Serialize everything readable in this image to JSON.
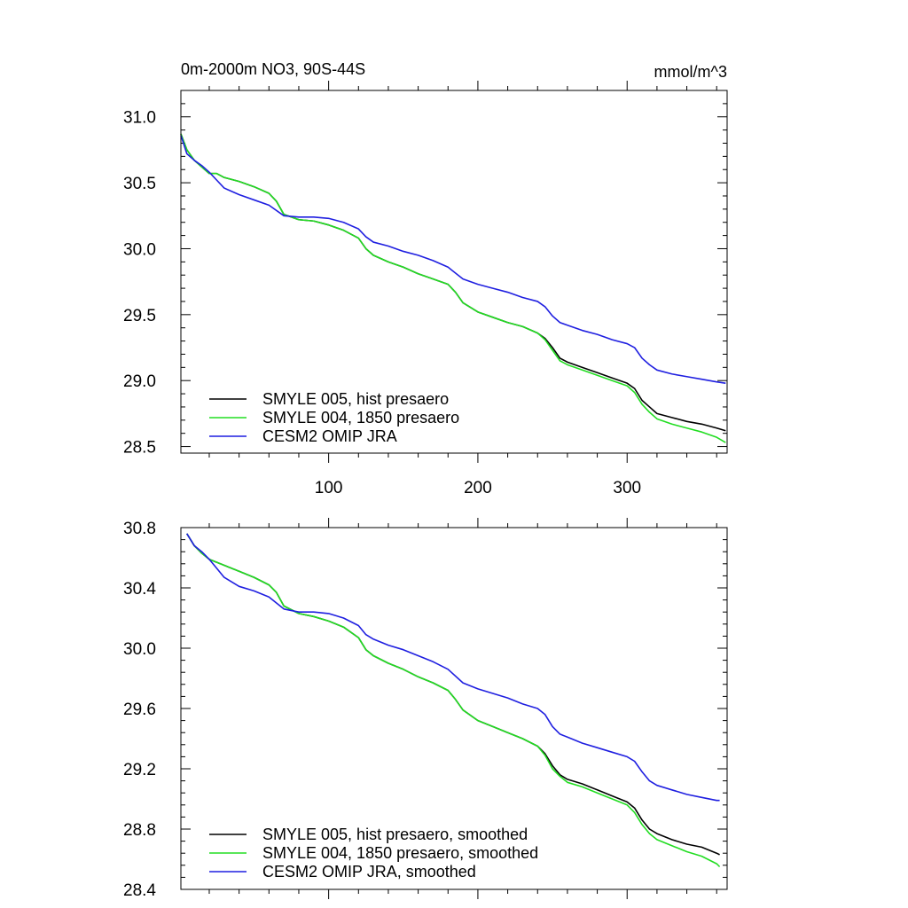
{
  "chart_data": [
    {
      "type": "line",
      "title_left": "0m-2000m NO3, 90S-44S",
      "title_right": "mmol/m^3",
      "xlabel": "",
      "ylabel": "",
      "xlim": [
        1,
        367
      ],
      "ylim": [
        28.45,
        31.2
      ],
      "xticks": [
        100,
        200,
        300
      ],
      "xtick_labels": [
        "100",
        "200",
        "300"
      ],
      "yticks": [
        28.5,
        29.0,
        29.5,
        30.0,
        30.5,
        31.0
      ],
      "ytick_labels": [
        "28.5",
        "29.0",
        "29.5",
        "30.0",
        "30.5",
        "31.0"
      ],
      "legend": "bottom-left",
      "series": [
        {
          "name": "SMYLE 005, hist presaero",
          "color": "#000000",
          "x": [
            1,
            5,
            10,
            15,
            20,
            25,
            30,
            40,
            50,
            60,
            65,
            70,
            80,
            90,
            100,
            110,
            120,
            125,
            130,
            140,
            150,
            160,
            170,
            180,
            185,
            190,
            200,
            210,
            220,
            230,
            240,
            245,
            250,
            255,
            260,
            270,
            280,
            290,
            300,
            305,
            310,
            315,
            320,
            330,
            340,
            350,
            360,
            366
          ],
          "y": [
            30.87,
            30.75,
            30.67,
            30.62,
            30.57,
            30.57,
            30.54,
            30.51,
            30.47,
            30.42,
            30.36,
            30.26,
            30.22,
            30.21,
            30.18,
            30.14,
            30.08,
            30.0,
            29.95,
            29.9,
            29.86,
            29.81,
            29.77,
            29.73,
            29.67,
            29.59,
            29.52,
            29.48,
            29.44,
            29.41,
            29.36,
            29.32,
            29.25,
            29.17,
            29.14,
            29.1,
            29.06,
            29.02,
            28.98,
            28.94,
            28.85,
            28.8,
            28.75,
            28.72,
            28.69,
            28.67,
            28.64,
            28.62
          ]
        },
        {
          "name": "SMYLE 004, 1850 presaero",
          "color": "#22dd22",
          "x": [
            1,
            5,
            10,
            15,
            20,
            25,
            30,
            40,
            50,
            60,
            65,
            70,
            80,
            90,
            100,
            110,
            120,
            125,
            130,
            140,
            150,
            160,
            170,
            180,
            185,
            190,
            200,
            210,
            220,
            230,
            240,
            245,
            250,
            255,
            260,
            270,
            280,
            290,
            300,
            305,
            310,
            315,
            320,
            330,
            340,
            350,
            360,
            366
          ],
          "y": [
            30.87,
            30.75,
            30.67,
            30.62,
            30.57,
            30.57,
            30.54,
            30.51,
            30.47,
            30.42,
            30.36,
            30.26,
            30.22,
            30.21,
            30.18,
            30.14,
            30.08,
            30.0,
            29.95,
            29.9,
            29.86,
            29.81,
            29.77,
            29.73,
            29.67,
            29.59,
            29.52,
            29.48,
            29.44,
            29.41,
            29.36,
            29.31,
            29.23,
            29.15,
            29.12,
            29.08,
            29.04,
            29.0,
            28.96,
            28.91,
            28.82,
            28.76,
            28.71,
            28.67,
            28.64,
            28.61,
            28.57,
            28.53
          ]
        },
        {
          "name": "CESM2 OMIP JRA",
          "color": "#1f1fe0",
          "x": [
            1,
            5,
            10,
            15,
            20,
            25,
            30,
            40,
            50,
            60,
            70,
            80,
            90,
            100,
            110,
            120,
            125,
            130,
            140,
            150,
            160,
            170,
            180,
            190,
            200,
            210,
            220,
            230,
            240,
            245,
            250,
            255,
            260,
            270,
            280,
            290,
            300,
            305,
            310,
            315,
            320,
            330,
            340,
            350,
            360,
            366
          ],
          "y": [
            30.86,
            30.72,
            30.67,
            30.63,
            30.58,
            30.52,
            30.46,
            30.41,
            30.37,
            30.33,
            30.25,
            30.24,
            30.24,
            30.23,
            30.2,
            30.15,
            30.09,
            30.05,
            30.02,
            29.98,
            29.95,
            29.91,
            29.86,
            29.77,
            29.73,
            29.7,
            29.67,
            29.63,
            29.6,
            29.56,
            29.49,
            29.44,
            29.42,
            29.38,
            29.35,
            29.31,
            29.28,
            29.25,
            29.17,
            29.12,
            29.08,
            29.05,
            29.03,
            29.01,
            28.99,
            28.98
          ]
        }
      ]
    },
    {
      "type": "line",
      "xlabel": "",
      "ylabel": "",
      "xlim": [
        1,
        367
      ],
      "ylim": [
        28.4,
        30.8
      ],
      "xticks": [
        100,
        200,
        300
      ],
      "yticks": [
        28.4,
        28.8,
        29.2,
        29.6,
        30.0,
        30.4,
        30.8
      ],
      "ytick_labels": [
        "28.4",
        "28.8",
        "29.2",
        "29.6",
        "30.0",
        "30.4",
        "30.8"
      ],
      "legend": "bottom-left",
      "series": [
        {
          "name": "SMYLE 005, hist presaero, smoothed",
          "color": "#000000",
          "x": [
            5,
            10,
            15,
            20,
            25,
            30,
            40,
            50,
            60,
            65,
            70,
            80,
            90,
            100,
            110,
            120,
            125,
            130,
            140,
            150,
            160,
            170,
            180,
            185,
            190,
            200,
            210,
            220,
            230,
            240,
            245,
            250,
            255,
            260,
            270,
            280,
            290,
            300,
            305,
            310,
            315,
            320,
            330,
            340,
            350,
            360,
            362
          ],
          "y": [
            30.76,
            30.68,
            30.63,
            30.59,
            30.57,
            30.55,
            30.51,
            30.47,
            30.42,
            30.37,
            30.28,
            30.23,
            30.21,
            30.18,
            30.14,
            30.07,
            29.99,
            29.95,
            29.9,
            29.86,
            29.81,
            29.77,
            29.72,
            29.66,
            29.59,
            29.52,
            29.48,
            29.44,
            29.4,
            29.35,
            29.3,
            29.22,
            29.16,
            29.13,
            29.1,
            29.06,
            29.02,
            28.98,
            28.94,
            28.86,
            28.8,
            28.77,
            28.73,
            28.7,
            28.68,
            28.64,
            28.63
          ]
        },
        {
          "name": "SMYLE 004, 1850 presaero, smoothed",
          "color": "#22dd22",
          "x": [
            5,
            10,
            15,
            20,
            25,
            30,
            40,
            50,
            60,
            65,
            70,
            80,
            90,
            100,
            110,
            120,
            125,
            130,
            140,
            150,
            160,
            170,
            180,
            185,
            190,
            200,
            210,
            220,
            230,
            240,
            245,
            250,
            255,
            260,
            270,
            280,
            290,
            300,
            305,
            310,
            315,
            320,
            330,
            340,
            350,
            360,
            362
          ],
          "y": [
            30.76,
            30.68,
            30.63,
            30.59,
            30.57,
            30.55,
            30.51,
            30.47,
            30.42,
            30.37,
            30.28,
            30.23,
            30.21,
            30.18,
            30.14,
            30.07,
            29.99,
            29.95,
            29.9,
            29.86,
            29.81,
            29.77,
            29.72,
            29.66,
            29.59,
            29.52,
            29.48,
            29.44,
            29.4,
            29.35,
            29.29,
            29.2,
            29.15,
            29.11,
            29.08,
            29.04,
            29.0,
            28.96,
            28.91,
            28.83,
            28.77,
            28.73,
            28.69,
            28.65,
            28.62,
            28.57,
            28.55
          ]
        },
        {
          "name": "CESM2 OMIP JRA, smoothed",
          "color": "#1f1fe0",
          "x": [
            5,
            10,
            15,
            20,
            25,
            30,
            40,
            50,
            60,
            70,
            80,
            90,
            100,
            110,
            120,
            125,
            130,
            140,
            150,
            160,
            170,
            180,
            190,
            200,
            210,
            220,
            230,
            240,
            245,
            250,
            255,
            260,
            270,
            280,
            290,
            300,
            305,
            310,
            315,
            320,
            330,
            340,
            350,
            360,
            362
          ],
          "y": [
            30.76,
            30.68,
            30.64,
            30.59,
            30.53,
            30.47,
            30.41,
            30.38,
            30.34,
            30.26,
            30.24,
            30.24,
            30.23,
            30.2,
            30.15,
            30.09,
            30.06,
            30.02,
            29.99,
            29.95,
            29.91,
            29.86,
            29.77,
            29.73,
            29.7,
            29.67,
            29.63,
            29.6,
            29.56,
            29.48,
            29.43,
            29.41,
            29.37,
            29.34,
            29.31,
            29.28,
            29.25,
            29.18,
            29.12,
            29.09,
            29.06,
            29.03,
            29.01,
            28.99,
            28.99
          ]
        }
      ]
    }
  ]
}
